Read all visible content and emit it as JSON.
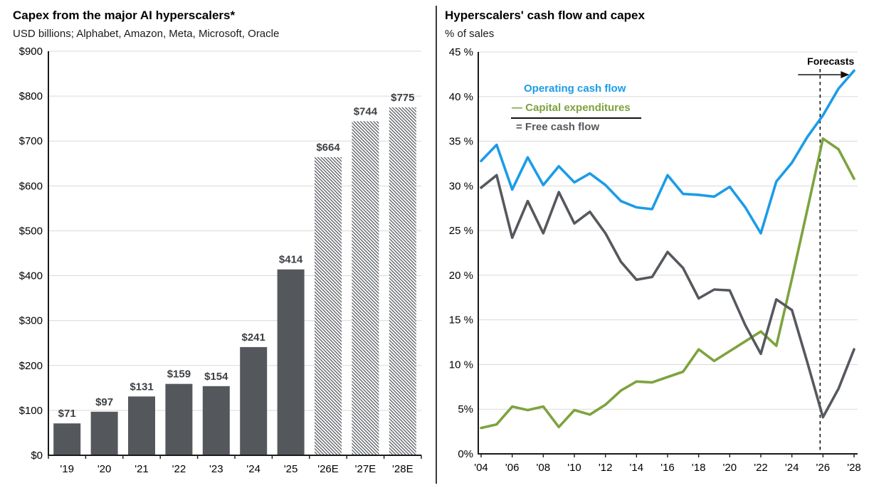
{
  "chart_data": [
    {
      "type": "bar",
      "title": "Capex from the major AI hyperscalers*",
      "subtitle": "USD billions; Alphabet, Amazon, Meta, Microsoft, Oracle",
      "categories": [
        "'19",
        "'20",
        "'21",
        "'22",
        "'23",
        "'24",
        "'25",
        "'26E",
        "'27E",
        "'28E"
      ],
      "values": [
        71,
        97,
        131,
        159,
        154,
        241,
        414,
        664,
        744,
        775
      ],
      "bar_labels": [
        "$71",
        "$97",
        "$131",
        "$159",
        "$154",
        "$241",
        "$414",
        "$664",
        "$744",
        "$775"
      ],
      "solid_count": 7,
      "hatched_categories": [
        "'26E",
        "'27E",
        "'28E"
      ],
      "ylim": [
        0,
        900
      ],
      "y_tick_values": [
        0,
        100,
        200,
        300,
        400,
        500,
        600,
        700,
        800,
        900
      ],
      "y_tick_labels": [
        "$0",
        "$100",
        "$200",
        "$300",
        "$400",
        "$500",
        "$600",
        "$700",
        "$800",
        "$900"
      ],
      "grid": true,
      "colors": {
        "bar": "#54585d",
        "value_label": "#3d4045",
        "gridline": "#d9d9d9",
        "axis": "#1a1a1a"
      }
    },
    {
      "type": "line",
      "title": "Hyperscalers' cash flow and capex",
      "subtitle": "% of sales",
      "x": [
        2004,
        2005,
        2006,
        2007,
        2008,
        2009,
        2010,
        2011,
        2012,
        2013,
        2014,
        2015,
        2016,
        2017,
        2018,
        2019,
        2020,
        2021,
        2022,
        2023,
        2024,
        2025,
        2026,
        2027,
        2028
      ],
      "x_tick_years": [
        2004,
        2006,
        2008,
        2010,
        2012,
        2014,
        2016,
        2018,
        2020,
        2022,
        2024,
        2026,
        2028
      ],
      "x_tick_labels": [
        "'04",
        "'06",
        "'08",
        "'10",
        "'12",
        "'14",
        "'16",
        "'18",
        "'20",
        "'22",
        "'24",
        "'26",
        "'28"
      ],
      "ylim": [
        0,
        45
      ],
      "y_tick_values": [
        45,
        40,
        35,
        30,
        25,
        20,
        15,
        10,
        5,
        0
      ],
      "y_tick_labels": [
        "45 %",
        "40 %",
        "35 %",
        "30 %",
        "25 %",
        "20 %",
        "15 %",
        "10 %",
        "5%",
        "0%"
      ],
      "grid": true,
      "legend_position": "top-left-inside",
      "series": [
        {
          "name": "Operating cash flow",
          "color": "#1b9ce8",
          "values": [
            32.8,
            34.6,
            29.6,
            33.2,
            30.1,
            32.2,
            30.4,
            31.4,
            30.1,
            28.3,
            27.6,
            27.4,
            31.2,
            29.1,
            29.0,
            28.8,
            29.9,
            27.6,
            24.7,
            30.5,
            32.6,
            35.5,
            37.9,
            40.9,
            42.9
          ]
        },
        {
          "name": "Capital expenditures",
          "color": "#7da33e",
          "values": [
            2.9,
            3.3,
            5.3,
            4.9,
            5.3,
            3.0,
            4.9,
            4.4,
            5.5,
            7.1,
            8.1,
            8.0,
            8.6,
            9.2,
            11.7,
            10.4,
            11.5,
            12.6,
            13.7,
            12.1,
            19.6,
            27.4,
            35.3,
            34.1,
            30.8
          ]
        },
        {
          "name": "Free cash flow",
          "color": "#55595e",
          "values": [
            29.8,
            31.2,
            24.2,
            28.3,
            24.7,
            29.3,
            25.8,
            27.1,
            24.7,
            21.5,
            19.5,
            19.8,
            22.6,
            20.8,
            17.4,
            18.4,
            18.3,
            14.4,
            11.2,
            17.3,
            16.1,
            10.2,
            4.1,
            7.3,
            11.7
          ]
        }
      ],
      "legend": [
        {
          "display": "Operating cash flow",
          "color": "#1b9ce8"
        },
        {
          "display": "— Capital expenditures",
          "color": "#7da33e"
        },
        {
          "display": "= Free cash flow",
          "color": "#54585d"
        }
      ],
      "annotations": {
        "forecasts_label": "Forecasts",
        "forecast_line_x": 2026
      }
    }
  ]
}
